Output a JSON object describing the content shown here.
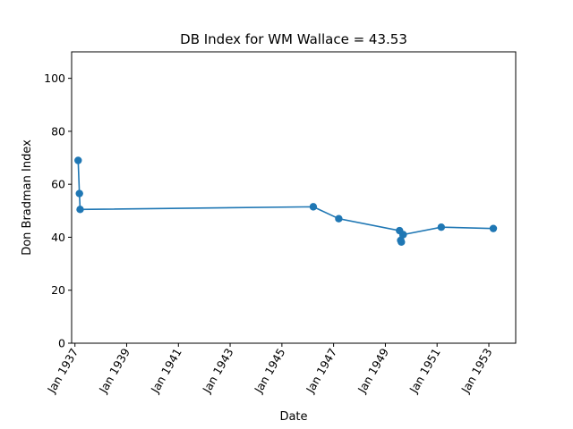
{
  "chart_data": {
    "type": "line",
    "title": "DB Index for WM Wallace = 43.53",
    "xlabel": "Date",
    "ylabel": "Don Bradman Index",
    "x_axis_type": "date",
    "xlim": [
      "1936-11-15",
      "1954-01-15"
    ],
    "ylim": [
      0,
      110
    ],
    "yticks": [
      0,
      20,
      40,
      60,
      80,
      100
    ],
    "xticks": [
      {
        "date": "1937-01-01",
        "label": "Jan 1937"
      },
      {
        "date": "1939-01-01",
        "label": "Jan 1939"
      },
      {
        "date": "1941-01-01",
        "label": "Jan 1941"
      },
      {
        "date": "1943-01-01",
        "label": "Jan 1943"
      },
      {
        "date": "1945-01-01",
        "label": "Jan 1945"
      },
      {
        "date": "1947-01-01",
        "label": "Jan 1947"
      },
      {
        "date": "1949-01-01",
        "label": "Jan 1949"
      },
      {
        "date": "1951-01-01",
        "label": "Jan 1951"
      },
      {
        "date": "1953-01-01",
        "label": "Jan 1953"
      }
    ],
    "grid": false,
    "legend": "none",
    "marker": "circle",
    "series": [
      {
        "color": "#1f77b4",
        "points": [
          {
            "x": "1937-02-15",
            "y": 69.0
          },
          {
            "x": "1937-03-05",
            "y": 56.5
          },
          {
            "x": "1937-03-15",
            "y": 50.5
          },
          {
            "x": "1946-03-20",
            "y": 51.5
          },
          {
            "x": "1947-03-15",
            "y": 47.0
          },
          {
            "x": "1949-07-20",
            "y": 42.5
          },
          {
            "x": "1949-08-05",
            "y": 38.8
          },
          {
            "x": "1949-08-15",
            "y": 38.2
          },
          {
            "x": "1949-09-10",
            "y": 41.0
          },
          {
            "x": "1951-03-01",
            "y": 43.8
          },
          {
            "x": "1953-03-05",
            "y": 43.3
          }
        ]
      }
    ]
  }
}
